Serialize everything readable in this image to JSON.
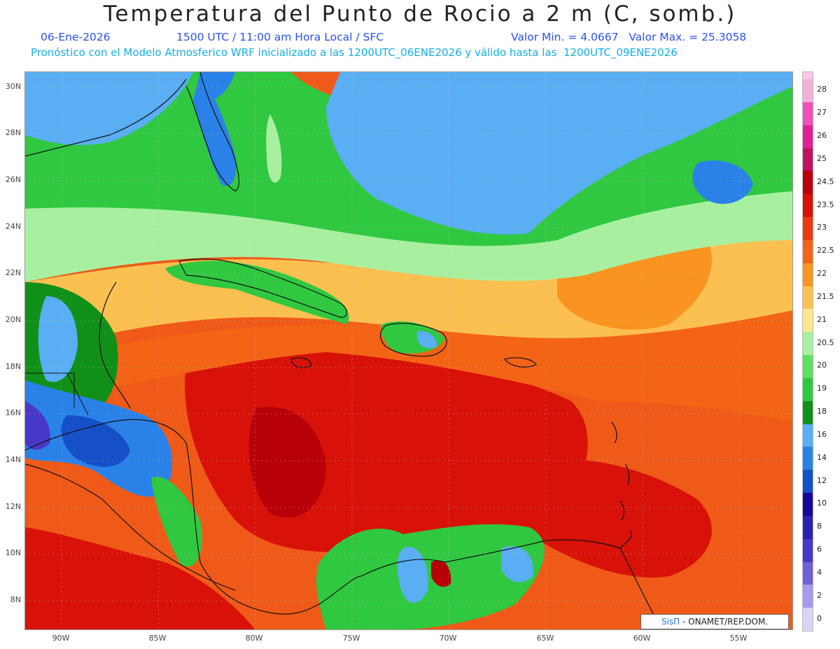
{
  "header": {
    "title": "Temperatura del Punto de Rocio a 2 m (C, somb.)",
    "date": "06-Ene-2026",
    "time": "1500 UTC / 11:00 am Hora Local / SFC",
    "minmax": "Valor Min. = 4.0667   Valor Max. = 25.3058",
    "model_line": "Pronóstico con el Modelo Atmosferico WRF inicializado a las 1200UTC_06ENE2026 y válido hasta las  1200UTC_09ENE2026"
  },
  "axes": {
    "latitudes": [
      "30N",
      "28N",
      "26N",
      "24N",
      "22N",
      "20N",
      "18N",
      "16N",
      "14N",
      "12N",
      "10N",
      "8N"
    ],
    "longitudes": [
      "90W",
      "85W",
      "80W",
      "75W",
      "70W",
      "65W",
      "60W",
      "55W"
    ]
  },
  "colorbar": {
    "levels": [
      {
        "label": "28",
        "color": "#f4b0d8"
      },
      {
        "label": "27",
        "color": "#f050b8"
      },
      {
        "label": "26",
        "color": "#e02096"
      },
      {
        "label": "25",
        "color": "#c01060"
      },
      {
        "label": "24.5",
        "color": "#b80008"
      },
      {
        "label": "23.5",
        "color": "#d81208"
      },
      {
        "label": "23",
        "color": "#ec3a10"
      },
      {
        "label": "22.5",
        "color": "#f46416"
      },
      {
        "label": "22",
        "color": "#fa9420"
      },
      {
        "label": "21.5",
        "color": "#fcc050"
      },
      {
        "label": "21",
        "color": "#fde690"
      },
      {
        "label": "20.5",
        "color": "#a8f0a0"
      },
      {
        "label": "20",
        "color": "#60e060"
      },
      {
        "label": "19",
        "color": "#30c840"
      },
      {
        "label": "18",
        "color": "#109018"
      },
      {
        "label": "16",
        "color": "#5aaef4"
      },
      {
        "label": "14",
        "color": "#2a82e8"
      },
      {
        "label": "12",
        "color": "#1650c8"
      },
      {
        "label": "10",
        "color": "#180898"
      },
      {
        "label": "8",
        "color": "#2c20b0"
      },
      {
        "label": "6",
        "color": "#4838c8"
      },
      {
        "label": "4",
        "color": "#7060d8"
      },
      {
        "label": "2",
        "color": "#a898ee"
      },
      {
        "label": "0",
        "color": "#d8d4f6"
      }
    ],
    "top_color": "#f8c8e8"
  },
  "logo": {
    "brand": "SisΠ",
    "text": " - ONAMET/REP.DOM."
  }
}
